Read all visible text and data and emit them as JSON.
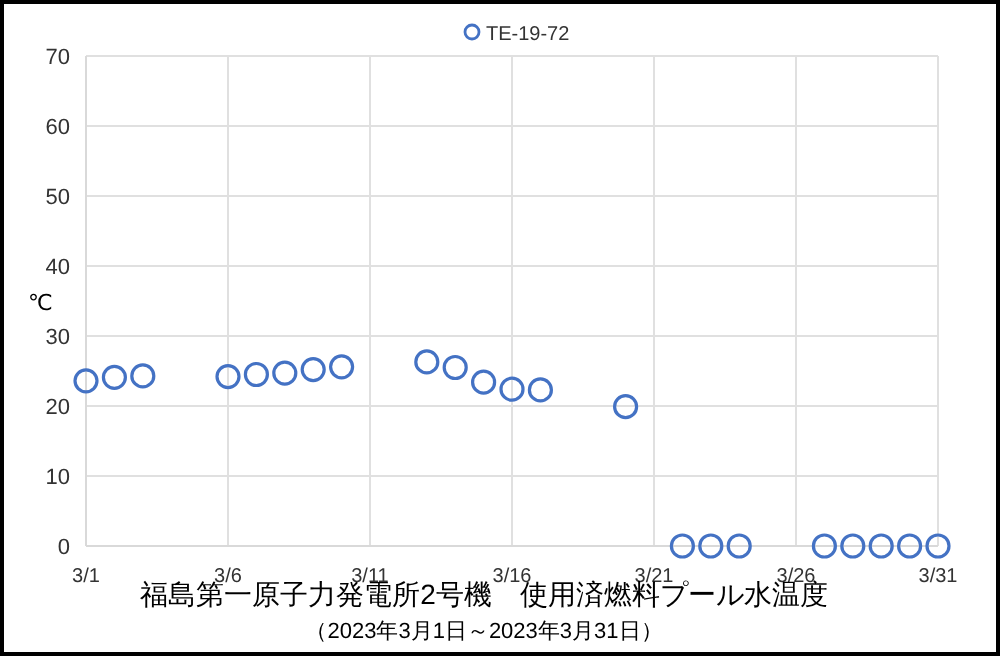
{
  "chart_data": {
    "type": "scatter",
    "title": "福島第一原子力発電所2号機　使用済燃料プール水温度",
    "subtitle": "（2023年3月1日～2023年3月31日）",
    "ylabel": "℃",
    "xlim": [
      "--03-01",
      "--03-31"
    ],
    "xticks": [
      {
        "value": "--03-01",
        "label": "3/1"
      },
      {
        "value": "--03-06",
        "label": "3/6"
      },
      {
        "value": "--03-11",
        "label": "3/11"
      },
      {
        "value": "--03-16",
        "label": "3/16"
      },
      {
        "value": "--03-21",
        "label": "3/21"
      },
      {
        "value": "--03-26",
        "label": "3/26"
      },
      {
        "value": "--03-31",
        "label": "3/31"
      }
    ],
    "ylim": [
      0,
      70
    ],
    "yticks": [
      0,
      10,
      20,
      30,
      40,
      50,
      60,
      70
    ],
    "grid": true,
    "legend": "top",
    "marker": "circle",
    "series": [
      {
        "name": "TE-19-72",
        "color": "#4472c4",
        "x": [
          "--03-01",
          "--03-02",
          "--03-03",
          "--03-06",
          "--03-07",
          "--03-08",
          "--03-09",
          "--03-10",
          "--03-13",
          "--03-14",
          "--03-15",
          "--03-16",
          "--03-17",
          "--03-20",
          "--03-22",
          "--03-23",
          "--03-24",
          "--03-27",
          "--03-28",
          "--03-29",
          "--03-30",
          "--03-31"
        ],
        "values": [
          23.6,
          24.1,
          24.3,
          24.2,
          24.5,
          24.7,
          25.2,
          25.6,
          26.3,
          25.5,
          23.4,
          22.4,
          22.3,
          19.9,
          0,
          0,
          0,
          0,
          0,
          0,
          0,
          0
        ]
      }
    ]
  }
}
